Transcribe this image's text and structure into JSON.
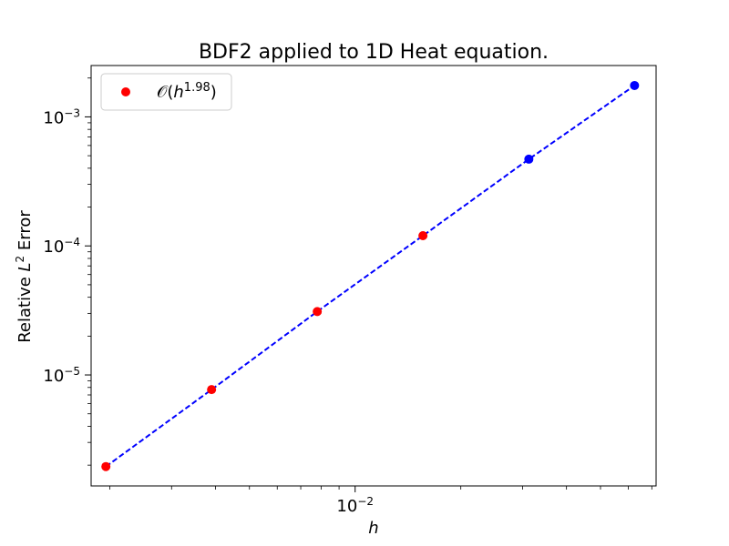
{
  "chart_data": {
    "type": "scatter",
    "title": "BDF2 applied to 1D Heat equation.",
    "xlabel": {
      "pre": "",
      "var": "h",
      "post": ""
    },
    "ylabel": {
      "pre": "Relative ",
      "var": "L",
      "sup": "2",
      "post": " Error"
    },
    "x_scale": "log",
    "y_scale": "log",
    "xlim": [
      0.00177,
      0.072
    ],
    "ylim": [
      1.38e-06,
      0.0025
    ],
    "x_ticks": [
      {
        "value": 0.01,
        "base": "10",
        "exp": "−2"
      }
    ],
    "y_ticks": [
      {
        "value": 1e-05,
        "base": "10",
        "exp": "−5"
      },
      {
        "value": 0.0001,
        "base": "10",
        "exp": "−4"
      },
      {
        "value": 0.001,
        "base": "10",
        "exp": "−3"
      }
    ],
    "legend": {
      "placement": "top-left",
      "entries": [
        {
          "pre": "𝒪(",
          "var": "h",
          "sup": "1.98",
          "post": ")",
          "color": "#ff0000"
        }
      ]
    },
    "series": [
      {
        "name": "𝒪(h^1.98)",
        "style": "markers",
        "color": "#ff0000",
        "x": [
          0.00195,
          0.0039,
          0.0078,
          0.0156
        ],
        "y": [
          1.95e-06,
          7.7e-06,
          3.1e-05,
          0.00012
        ]
      },
      {
        "style": "markers",
        "color": "#0000ff",
        "x": [
          0.03125,
          0.0625
        ],
        "y": [
          0.00047,
          0.00175
        ]
      },
      {
        "style": "dashed-line",
        "color": "#0000ff",
        "x": [
          0.00195,
          0.0039,
          0.0078,
          0.0156,
          0.03125,
          0.0625
        ],
        "y": [
          1.95e-06,
          7.7e-06,
          3.1e-05,
          0.00012,
          0.00047,
          0.00175
        ]
      }
    ],
    "grid": false
  }
}
